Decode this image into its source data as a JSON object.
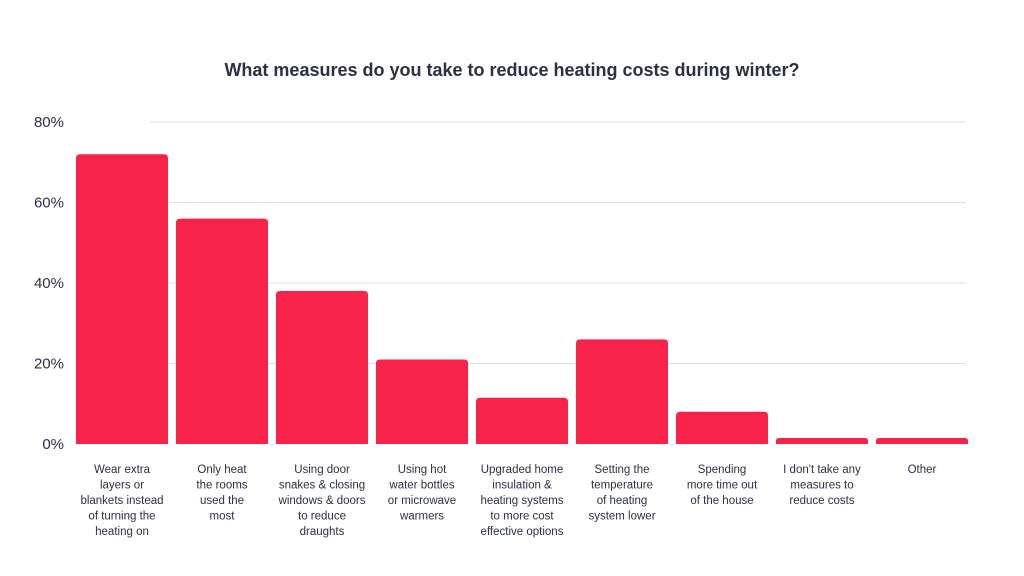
{
  "chart_data": {
    "type": "bar",
    "title": "What measures do you take to reduce heating costs during winter?",
    "xlabel": "",
    "ylabel": "",
    "ylim": [
      0,
      80
    ],
    "yticks": [
      "0%",
      "20%",
      "40%",
      "60%",
      "80%"
    ],
    "ytick_values": [
      0,
      20,
      40,
      60,
      80
    ],
    "grid": true,
    "bar_color": "#f7234a",
    "categories": [
      [
        "Wear extra",
        "layers or",
        "blankets instead",
        "of turning the",
        "heating on"
      ],
      [
        "Only heat",
        "the rooms",
        "used the",
        "most"
      ],
      [
        "Using door",
        "snakes & closing",
        "windows & doors",
        "to reduce",
        "draughts"
      ],
      [
        "Using hot",
        "water bottles",
        "or microwave",
        "warmers"
      ],
      [
        "Upgraded home",
        "insulation &",
        "heating systems",
        "to more cost",
        "effective options"
      ],
      [
        "Setting the",
        "temperature",
        "of heating",
        "system lower"
      ],
      [
        "Spending",
        "more time out",
        "of the house"
      ],
      [
        "I don't take any",
        "measures to",
        "reduce costs"
      ],
      [
        "Other"
      ]
    ],
    "values": [
      72,
      56,
      38,
      21,
      11.5,
      26,
      8,
      1.5,
      1.5
    ]
  }
}
